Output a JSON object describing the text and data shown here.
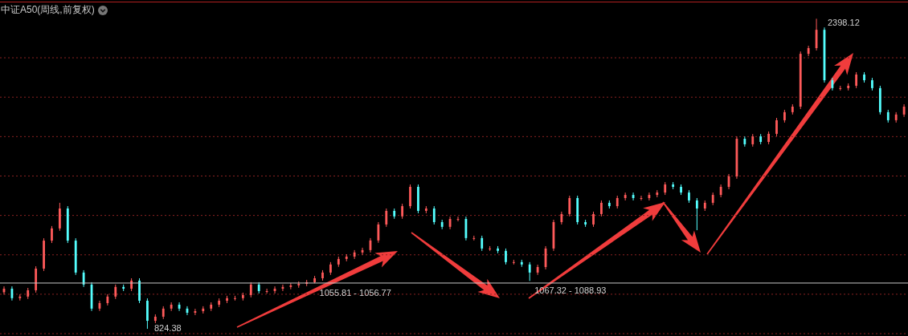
{
  "chart_data": {
    "type": "candlestick",
    "title": "中证A50(周线,前复权)",
    "categories": [
      null,
      null,
      null,
      null,
      null,
      null,
      null,
      null,
      null,
      null,
      null,
      null,
      null,
      null,
      null,
      null,
      null,
      null,
      null,
      null,
      null,
      null,
      null,
      null,
      null,
      null,
      null,
      null,
      null,
      null,
      null,
      null,
      null,
      null,
      null,
      null,
      null,
      null,
      null,
      null,
      null,
      null,
      null,
      null,
      null,
      null,
      null,
      null,
      null,
      null,
      null,
      null,
      null,
      null,
      null,
      null,
      null,
      null,
      null,
      null,
      null,
      null,
      null,
      null,
      null,
      null,
      null,
      null,
      null,
      null,
      null,
      null,
      null,
      null,
      null,
      null,
      null,
      null,
      null,
      null,
      null,
      null,
      null,
      null,
      null,
      null,
      null,
      null,
      null,
      null,
      null,
      null,
      null,
      null,
      null,
      null,
      null,
      null,
      null,
      null,
      null,
      null,
      null,
      null,
      null,
      null,
      null,
      null,
      null,
      null,
      null,
      null,
      null,
      null
    ],
    "ohlc": [
      [
        1010,
        1040,
        998,
        1028
      ],
      [
        1028,
        1040,
        968,
        980
      ],
      [
        980,
        1000,
        968,
        988
      ],
      [
        988,
        1032,
        976,
        1020
      ],
      [
        1020,
        1142,
        1008,
        1130
      ],
      [
        1130,
        1284,
        1118,
        1272
      ],
      [
        1272,
        1346,
        1260,
        1334
      ],
      [
        1334,
        1464,
        1322,
        1435
      ],
      [
        1435,
        1447,
        1260,
        1272
      ],
      [
        1272,
        1284,
        1098,
        1110
      ],
      [
        1110,
        1122,
        1037,
        1049
      ],
      [
        1049,
        1061,
        915,
        927
      ],
      [
        927,
        967,
        915,
        955
      ],
      [
        955,
        1000,
        943,
        988
      ],
      [
        988,
        1049,
        976,
        1037
      ],
      [
        1037,
        1049,
        1016,
        1028
      ],
      [
        1028,
        1081,
        1016,
        1069
      ],
      [
        1069,
        1081,
        955,
        967
      ],
      [
        967,
        979,
        824.38,
        865
      ],
      [
        865,
        898,
        853,
        886
      ],
      [
        886,
        939,
        874,
        927
      ],
      [
        927,
        959,
        915,
        947
      ],
      [
        947,
        959,
        915,
        927
      ],
      [
        927,
        939,
        894,
        906
      ],
      [
        906,
        926,
        894,
        914
      ],
      [
        914,
        939,
        902,
        927
      ],
      [
        927,
        959,
        915,
        947
      ],
      [
        947,
        979,
        935,
        967
      ],
      [
        967,
        992,
        955,
        980
      ],
      [
        980,
        992,
        968,
        980
      ],
      [
        980,
        1008,
        968,
        996
      ],
      [
        996,
        1061,
        984,
        1049
      ],
      [
        1049,
        1061,
        1004,
        1016
      ],
      [
        1016,
        1028,
        1004,
        1016
      ],
      [
        1016,
        1040,
        1004,
        1028
      ],
      [
        1028,
        1049,
        1016,
        1037
      ],
      [
        1037,
        1057,
        1025,
        1045
      ],
      [
        1045,
        1065,
        1033,
        1053
      ],
      [
        1053,
        1073,
        1041,
        1061
      ],
      [
        1061,
        1093,
        1055.81,
        1081
      ],
      [
        1081,
        1122,
        1069,
        1110
      ],
      [
        1110,
        1163,
        1098,
        1151
      ],
      [
        1151,
        1191,
        1139,
        1179
      ],
      [
        1179,
        1203,
        1167,
        1191
      ],
      [
        1191,
        1224,
        1179,
        1212
      ],
      [
        1212,
        1236,
        1200,
        1224
      ],
      [
        1224,
        1285,
        1212,
        1273
      ],
      [
        1273,
        1366,
        1261,
        1354
      ],
      [
        1354,
        1435,
        1342,
        1423
      ],
      [
        1423,
        1435,
        1383,
        1395
      ],
      [
        1395,
        1459,
        1383,
        1447
      ],
      [
        1447,
        1557,
        1435,
        1545
      ],
      [
        1545,
        1557,
        1411,
        1423
      ],
      [
        1423,
        1447,
        1411,
        1435
      ],
      [
        1435,
        1447,
        1354,
        1366
      ],
      [
        1366,
        1378,
        1330,
        1342
      ],
      [
        1342,
        1394,
        1330,
        1382
      ],
      [
        1382,
        1394,
        1370,
        1382
      ],
      [
        1382,
        1394,
        1273,
        1285
      ],
      [
        1285,
        1297,
        1273,
        1285
      ],
      [
        1285,
        1297,
        1220,
        1232
      ],
      [
        1232,
        1244,
        1220,
        1232
      ],
      [
        1232,
        1244,
        1208,
        1220
      ],
      [
        1220,
        1232,
        1151,
        1163
      ],
      [
        1163,
        1175,
        1151,
        1163
      ],
      [
        1163,
        1175,
        1139,
        1151
      ],
      [
        1151,
        1163,
        1067.32,
        1110
      ],
      [
        1110,
        1150,
        1098,
        1138
      ],
      [
        1138,
        1244,
        1126,
        1232
      ],
      [
        1232,
        1378,
        1220,
        1366
      ],
      [
        1366,
        1419,
        1354,
        1407
      ],
      [
        1407,
        1500,
        1395,
        1488
      ],
      [
        1488,
        1500,
        1354,
        1366
      ],
      [
        1366,
        1378,
        1342,
        1354
      ],
      [
        1354,
        1419,
        1342,
        1407
      ],
      [
        1407,
        1476,
        1395,
        1464
      ],
      [
        1464,
        1476,
        1435,
        1447
      ],
      [
        1447,
        1500,
        1435,
        1488
      ],
      [
        1488,
        1516,
        1476,
        1504
      ],
      [
        1504,
        1516,
        1476,
        1488
      ],
      [
        1488,
        1500,
        1476,
        1488
      ],
      [
        1488,
        1516,
        1476,
        1504
      ],
      [
        1504,
        1528,
        1492,
        1516
      ],
      [
        1516,
        1569,
        1504,
        1557
      ],
      [
        1557,
        1569,
        1533,
        1545
      ],
      [
        1545,
        1557,
        1504,
        1516
      ],
      [
        1516,
        1528,
        1464,
        1476
      ],
      [
        1476,
        1488,
        1325,
        1435
      ],
      [
        1435,
        1476,
        1423,
        1464
      ],
      [
        1464,
        1516,
        1452,
        1504
      ],
      [
        1504,
        1557,
        1492,
        1545
      ],
      [
        1545,
        1610,
        1533,
        1598
      ],
      [
        1598,
        1801,
        1586,
        1789
      ],
      [
        1789,
        1801,
        1749,
        1761
      ],
      [
        1761,
        1813,
        1749,
        1801
      ],
      [
        1801,
        1813,
        1761,
        1773
      ],
      [
        1773,
        1826,
        1761,
        1814
      ],
      [
        1814,
        1895,
        1802,
        1883
      ],
      [
        1883,
        1936,
        1871,
        1924
      ],
      [
        1924,
        1964,
        1912,
        1952
      ],
      [
        1952,
        2232,
        1940,
        2220
      ],
      [
        2220,
        2261,
        2208,
        2249
      ],
      [
        2249,
        2398.12,
        2237,
        2342
      ],
      [
        2342,
        2354,
        2074,
        2086
      ],
      [
        2086,
        2098,
        2034,
        2046
      ],
      [
        2046,
        2058,
        2034,
        2046
      ],
      [
        2046,
        2070,
        2034,
        2058
      ],
      [
        2058,
        2127,
        2046,
        2115
      ],
      [
        2115,
        2127,
        2074,
        2086
      ],
      [
        2086,
        2098,
        2034,
        2046
      ],
      [
        2046,
        2058,
        1912,
        1924
      ],
      [
        1924,
        1936,
        1871,
        1883
      ],
      [
        1883,
        1924,
        1871,
        1912
      ],
      [
        1912,
        1964,
        1900,
        1952
      ]
    ],
    "colors": [
      "#ff5a5a",
      "#54ffff",
      "#ff5a5a",
      "#ff5a5a",
      "#ff5a5a",
      "#ff5a5a",
      "#ff5a5a",
      "#ff5a5a",
      "#54ffff",
      "#54ffff",
      "#54ffff",
      "#54ffff",
      "#ff5a5a",
      "#ff5a5a",
      "#ff5a5a",
      "#54ffff",
      "#ff5a5a",
      "#54ffff",
      "#54ffff",
      "#ff5a5a",
      "#ff5a5a",
      "#ff5a5a",
      "#54ffff",
      "#54ffff",
      "#ff5a5a",
      "#ff5a5a",
      "#ff5a5a",
      "#ff5a5a",
      "#ff5a5a",
      "#ff5a5a",
      "#ff5a5a",
      "#ff5a5a",
      "#54ffff",
      "#ff5a5a",
      "#ff5a5a",
      "#ff5a5a",
      "#ff5a5a",
      "#ff5a5a",
      "#ff5a5a",
      "#ff5a5a",
      "#ff5a5a",
      "#ff5a5a",
      "#ff5a5a",
      "#ff5a5a",
      "#ff5a5a",
      "#ff5a5a",
      "#ff5a5a",
      "#ff5a5a",
      "#ff5a5a",
      "#54ffff",
      "#ff5a5a",
      "#ff5a5a",
      "#54ffff",
      "#ff5a5a",
      "#54ffff",
      "#54ffff",
      "#ff5a5a",
      "#ff5a5a",
      "#54ffff",
      "#ff5a5a",
      "#54ffff",
      "#ff5a5a",
      "#54ffff",
      "#54ffff",
      "#ff5a5a",
      "#54ffff",
      "#54ffff",
      "#ff5a5a",
      "#ff5a5a",
      "#ff5a5a",
      "#ff5a5a",
      "#ff5a5a",
      "#54ffff",
      "#54ffff",
      "#ff5a5a",
      "#ff5a5a",
      "#54ffff",
      "#ff5a5a",
      "#ff5a5a",
      "#54ffff",
      "#ff5a5a",
      "#ff5a5a",
      "#ff5a5a",
      "#ff5a5a",
      "#54ffff",
      "#54ffff",
      "#54ffff",
      "#54ffff",
      "#ff5a5a",
      "#ff5a5a",
      "#ff5a5a",
      "#ff5a5a",
      "#ff5a5a",
      "#54ffff",
      "#ff5a5a",
      "#54ffff",
      "#ff5a5a",
      "#ff5a5a",
      "#ff5a5a",
      "#ff5a5a",
      "#ff5a5a",
      "#ff5a5a",
      "#ff5a5a",
      "#54ffff",
      "#54ffff",
      "#ff5a5a",
      "#ff5a5a",
      "#ff5a5a",
      "#54ffff",
      "#54ffff",
      "#54ffff",
      "#54ffff",
      "#ff5a5a",
      "#ff5a5a"
    ],
    "ylim": [
      788,
      2481
    ],
    "yticks": [
      {
        "value": 800,
        "label": null
      },
      {
        "value": 1000,
        "label": null
      },
      {
        "value": 1200,
        "label": null
      },
      {
        "value": 1400,
        "label": null
      },
      {
        "value": 1600,
        "label": null
      },
      {
        "value": 1800,
        "label": null
      },
      {
        "value": 2000,
        "label": null
      },
      {
        "value": 2200,
        "label": null
      }
    ],
    "grid": "y",
    "tick_labels": false,
    "ref_lines": [
      {
        "axis": "y",
        "value": 1056.77,
        "color": "#c8c8c8"
      }
    ],
    "annotations": [
      "2398.12",
      "824.38",
      {
        "text": "1055.81 - 1056.77",
        "y": 1055.81
      },
      {
        "text": "1067.32 - 1088.93",
        "y": 1067.32
      }
    ]
  }
}
